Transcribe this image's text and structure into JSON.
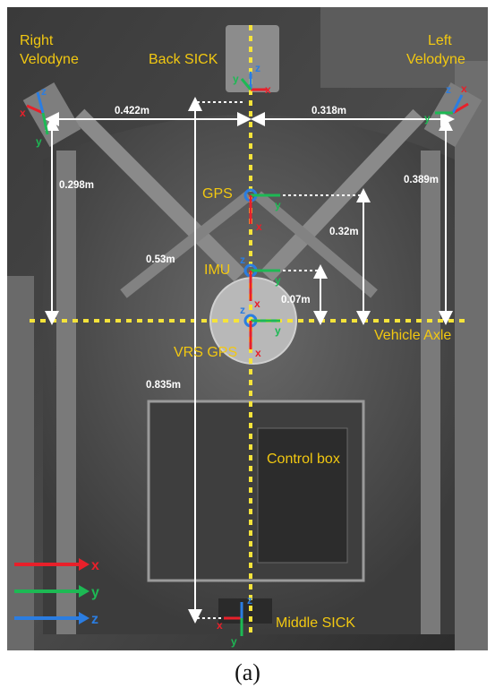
{
  "colors": {
    "label": "#f2c811",
    "dimension": "#ffffff",
    "x_axis": "#e8202a",
    "y_axis": "#1db954",
    "z_axis": "#2b7de1",
    "centerline": "#f5e33a"
  },
  "labels": {
    "right_velodyne_1": "Right",
    "right_velodyne_2": "Velodyne",
    "left_velodyne_1": "Left",
    "left_velodyne_2": "Velodyne",
    "back_sick": "Back SICK",
    "gps": "GPS",
    "imu": "IMU",
    "vrs_gps": "VRS GPS",
    "vehicle_axle": "Vehicle Axle",
    "control_box": "Control box",
    "middle_sick": "Middle SICK"
  },
  "dimensions": {
    "d_0422": "0.422m",
    "d_0318": "0.318m",
    "d_0298": "0.298m",
    "d_0389": "0.389m",
    "d_032": "0.32m",
    "d_053": "0.53m",
    "d_007": "0.07m",
    "d_0835": "0.835m"
  },
  "axes": {
    "x": "x",
    "y": "y",
    "z": "z"
  },
  "legend": {
    "x": "x",
    "y": "y",
    "z": "z"
  },
  "caption": "(a)"
}
